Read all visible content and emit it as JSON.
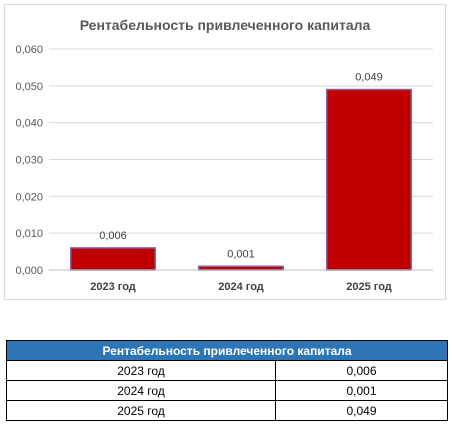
{
  "chart_data": {
    "type": "bar",
    "title": "Рентабельность привлеченного капитала",
    "categories": [
      "2023 год",
      "2024 год",
      "2025 год"
    ],
    "values": [
      0.006,
      0.001,
      0.049
    ],
    "value_labels": [
      "0,006",
      "0,001",
      "0,049"
    ],
    "ylim": [
      0,
      0.06
    ],
    "y_ticks": [
      "0,000",
      "0,010",
      "0,020",
      "0,030",
      "0,040",
      "0,050",
      "0,060"
    ],
    "grid": true,
    "legend": "none",
    "bar_color": "#c00000",
    "bar_border_color": "#8064a2"
  },
  "table": {
    "header": "Рентабельность привлеченного капитала",
    "rows": [
      {
        "year": "2023 год",
        "value": "0,006"
      },
      {
        "year": "2024 год",
        "value": "0,001"
      },
      {
        "year": "2025 год",
        "value": "0,049"
      }
    ]
  }
}
